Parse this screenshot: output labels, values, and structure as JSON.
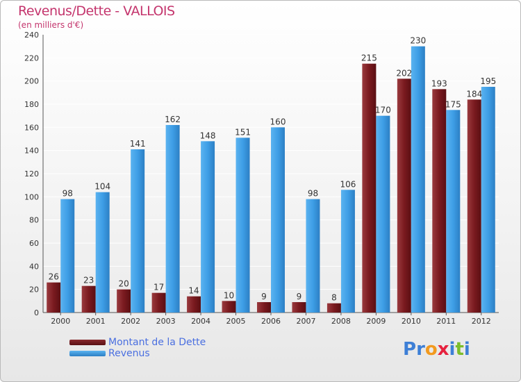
{
  "header": {
    "title": "Revenus/Dette - VALLOIS",
    "subtitle": "(en milliers d'€)"
  },
  "legend": {
    "debt_label": "Montant de la Dette",
    "revenue_label": "Revenus"
  },
  "logo": {
    "text": "Proxiti",
    "letters": [
      "P",
      "r",
      "o",
      "x",
      "i",
      "t",
      "i"
    ],
    "letter_colors": [
      "#3d7fd6",
      "#3d7fd6",
      "#f29a1f",
      "#e6213e",
      "#3d7fd6",
      "#7cbd2b",
      "#3d7fd6"
    ]
  },
  "colors": {
    "debt": "#7a1a1f",
    "revenue": "#3e9ee6",
    "title": "#c4356d",
    "legend_text": "#4a6fe0"
  },
  "chart_data": {
    "type": "bar",
    "categories": [
      "2000",
      "2001",
      "2002",
      "2003",
      "2004",
      "2005",
      "2006",
      "2007",
      "2008",
      "2009",
      "2010",
      "2011",
      "2012"
    ],
    "series": [
      {
        "name": "Montant de la Dette",
        "values": [
          26,
          23,
          20,
          17,
          14,
          10,
          9,
          9,
          8,
          215,
          202,
          193,
          184
        ]
      },
      {
        "name": "Revenus",
        "values": [
          98,
          104,
          141,
          162,
          148,
          151,
          160,
          98,
          106,
          170,
          230,
          175,
          195
        ]
      }
    ],
    "yticks": [
      0,
      20,
      40,
      60,
      80,
      100,
      120,
      140,
      160,
      180,
      200,
      220,
      240
    ],
    "ylim": [
      0,
      240
    ],
    "grid": true,
    "legend_position": "bottom-left"
  }
}
